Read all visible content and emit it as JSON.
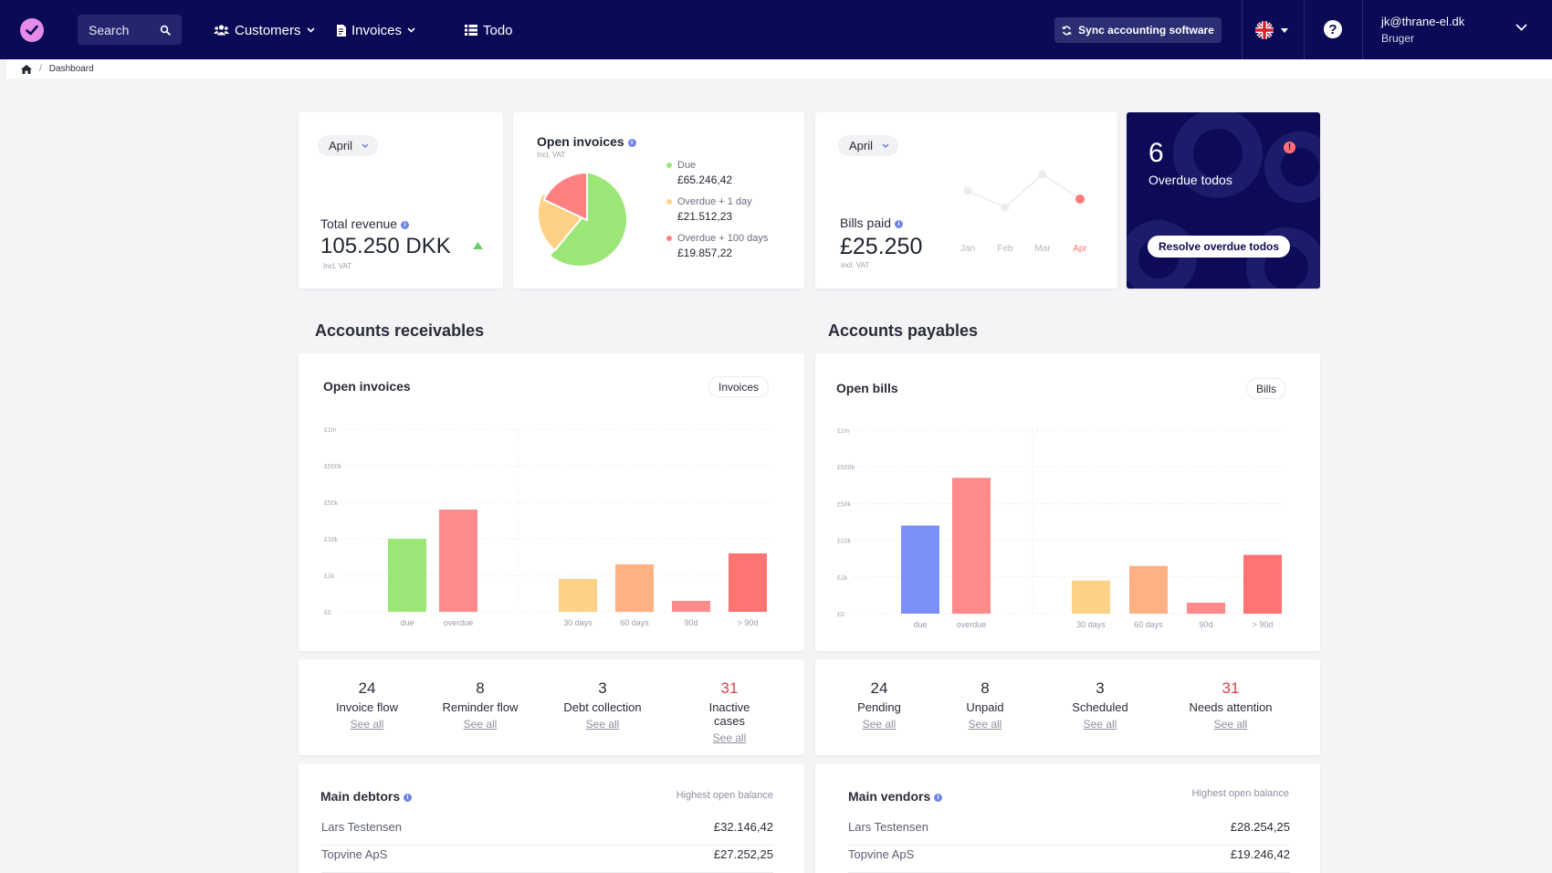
{
  "nav": {
    "search_placeholder": "Search",
    "customers": "Customers",
    "invoices": "Invoices",
    "todo": "Todo",
    "sync": "Sync accounting software",
    "help": "?",
    "user_email": "jk@thrane-el.dk",
    "user_role": "Bruger"
  },
  "breadcrumb": {
    "current": "Dashboard"
  },
  "revenue": {
    "period": "April",
    "label": "Total revenue",
    "value": "105.250 DKK",
    "note": "Incl. VAT",
    "trend": "up"
  },
  "open_invoices": {
    "title": "Open invoices",
    "note": "Incl. VAT",
    "legend": [
      {
        "label": "Due",
        "amount": "£65.246,42",
        "color": "#9be676",
        "share": 61
      },
      {
        "label": "Overdue + 1 day",
        "amount": "£21.512,23",
        "color": "#fdd187",
        "share": 21
      },
      {
        "label": "Overdue + 100 days",
        "amount": "£19.857,22",
        "color": "#ff8080",
        "share": 18
      }
    ]
  },
  "bills": {
    "period": "April",
    "label": "Bills paid",
    "value": "£25.250",
    "note": "Incl. VAT",
    "months": [
      "Jan",
      "Feb",
      "Mar",
      "Apr"
    ],
    "trend": [
      3,
      2,
      4,
      2.5
    ]
  },
  "todos": {
    "count": "6",
    "label": "Overdue todos",
    "button": "Resolve overdue todos",
    "alert": "!"
  },
  "receivables": {
    "section_title": "Accounts receivables",
    "chart_title": "Open invoices",
    "button": "Invoices",
    "stats": [
      {
        "value": "24",
        "label": "Invoice flow",
        "link": "See all",
        "alert": false
      },
      {
        "value": "8",
        "label": "Reminder flow",
        "link": "See all",
        "alert": false
      },
      {
        "value": "3",
        "label": "Debt collection",
        "link": "See all",
        "alert": false
      },
      {
        "value": "31",
        "label": "Inactive cases",
        "link": "See all",
        "alert": true
      }
    ],
    "debtors_title": "Main debtors",
    "debtors_sub": "Highest open balance",
    "debtors": [
      {
        "name": "Lars Testensen",
        "amount": "£32.146,42"
      },
      {
        "name": "Topvine ApS",
        "amount": "£27.252,25"
      }
    ]
  },
  "payables": {
    "section_title": "Accounts payables",
    "chart_title": "Open bills",
    "button": "Bills",
    "stats": [
      {
        "value": "24",
        "label": "Pending",
        "link": "See all",
        "alert": false
      },
      {
        "value": "8",
        "label": "Unpaid",
        "link": "See all",
        "alert": false
      },
      {
        "value": "3",
        "label": "Scheduled",
        "link": "See all",
        "alert": false
      },
      {
        "value": "31",
        "label": "Needs attention",
        "link": "See all",
        "alert": true
      }
    ],
    "vendors_title": "Main vendors",
    "vendors_sub": "Highest open balance",
    "vendors": [
      {
        "name": "Lars Testensen",
        "amount": "£28.254,25"
      },
      {
        "name": "Topvine ApS",
        "amount": "£19.246,42"
      }
    ]
  },
  "chart_data": [
    {
      "type": "bar",
      "title": "Open invoices",
      "y_ticks": [
        "£0",
        "£1k",
        "£10k",
        "£50k",
        "£500k",
        "£1m"
      ],
      "categories": [
        "due",
        "overdue",
        "30 days",
        "60 days",
        "90d",
        "> 90d"
      ],
      "values": [
        2.0,
        2.8,
        0.9,
        1.3,
        0.3,
        1.6
      ],
      "colors": [
        "#9be676",
        "#ff8a8a",
        "#fdd187",
        "#ffb183",
        "#ff8a8a",
        "#ff7373"
      ]
    },
    {
      "type": "bar",
      "title": "Open bills",
      "y_ticks": [
        "£0",
        "£1k",
        "£10k",
        "£50k",
        "£500k",
        "£1m"
      ],
      "categories": [
        "due",
        "overdue",
        "30 days",
        "60 days",
        "90d",
        "> 90d"
      ],
      "values": [
        2.4,
        3.7,
        0.9,
        1.3,
        0.3,
        1.6
      ],
      "colors": [
        "#7b8ff9",
        "#ff8a8a",
        "#fdd187",
        "#ffb183",
        "#ff8a8a",
        "#ff7373"
      ]
    }
  ]
}
